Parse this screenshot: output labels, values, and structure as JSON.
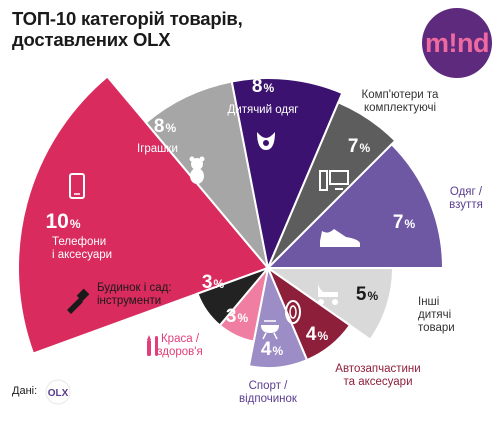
{
  "header": {
    "title_line1": "ТОП-10 категорій товарів,",
    "title_line2": "доставлених OLX",
    "logo_text": "m!nd"
  },
  "source": {
    "label": "Дані:",
    "logo_text": "OLX"
  },
  "chart_data": {
    "type": "pie",
    "title": "ТОП-10 категорій товарів, доставлених OLX",
    "unit": "%",
    "slices": [
      {
        "label": "Телефони і аксесуари",
        "value": 10,
        "value_label": "10%",
        "color": "#d92b5e",
        "icon": "phone-icon"
      },
      {
        "label": "Іграшки",
        "value": 8,
        "value_label": "8%",
        "color": "#a6a6a6",
        "icon": "teddy-bear-icon"
      },
      {
        "label": "Дитячий одяг",
        "value": 8,
        "value_label": "8%",
        "color": "#3b1270",
        "icon": "bib-icon"
      },
      {
        "label": "Комп'ютери та комплектуючі",
        "value": 7,
        "value_label": "7%",
        "color": "#5d5d5d",
        "icon": "computer-icon"
      },
      {
        "label": "Одяг / взуття",
        "value": 7,
        "value_label": "7%",
        "color": "#6e58a4",
        "icon": "sneaker-icon"
      },
      {
        "label": "Інші дитячі товари",
        "value": 5,
        "value_label": "5%",
        "color": "#d9d9d9",
        "icon": "stroller-icon"
      },
      {
        "label": "Автозапчастини та аксесуари",
        "value": 4,
        "value_label": "4%",
        "color": "#8e1f3b",
        "icon": "tire-icon"
      },
      {
        "label": "Спорт / відпочинок",
        "value": 4,
        "value_label": "4%",
        "color": "#9d8dc6",
        "icon": "grill-icon"
      },
      {
        "label": "Краса / здоров'я",
        "value": 3,
        "value_label": "3%",
        "color": "#f07ea2",
        "icon": "makeup-icon"
      },
      {
        "label": "Будинок і сад: інструменти",
        "value": 3,
        "value_label": "3%",
        "color": "#222222",
        "icon": "brush-icon"
      }
    ],
    "label_lines": {
      "Телефони і аксесуари": [
        "Телефони",
        "і аксесуари"
      ],
      "Іграшки": [
        "Іграшки"
      ],
      "Дитячий одяг": [
        "Дитячий одяг"
      ],
      "Комп'ютери та комплектуючі": [
        "Комп'ютери та",
        "комплектуючі"
      ],
      "Одяг / взуття": [
        "Одяг /",
        "взуття"
      ],
      "Інші дитячі товари": [
        "Інші",
        "дитячі",
        "товари"
      ],
      "Автозапчастини та аксесуари": [
        "Автозапчастини",
        "та аксесуари"
      ],
      "Спорт / відпочинок": [
        "Спорт /",
        "відпочинок"
      ],
      "Краса / здоров'я": [
        "Краса /",
        "здоров'я"
      ],
      "Будинок і сад: інструменти": [
        "Будинок і сад:",
        "інструменти"
      ]
    }
  }
}
